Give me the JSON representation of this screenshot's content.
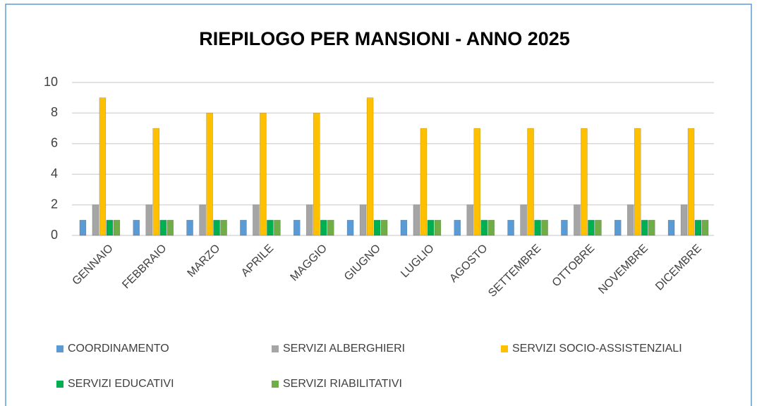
{
  "chart_data": {
    "type": "bar",
    "title": "RIEPILOGO PER MANSIONI - ANNO 2025",
    "categories": [
      "GENNAIO",
      "FEBBRAIO",
      "MARZO",
      "APRILE",
      "MAGGIO",
      "GIUGNO",
      "LUGLIO",
      "AGOSTO",
      "SETTEMBRE",
      "OTTOBRE",
      "NOVEMBRE",
      "DICEMBRE"
    ],
    "series": [
      {
        "name": "COORDINAMENTO",
        "color": "#5b9bd5",
        "values": [
          1,
          1,
          1,
          1,
          1,
          1,
          1,
          1,
          1,
          1,
          1,
          1
        ]
      },
      {
        "name": "SERVIZI ALBERGHIERI",
        "color": "#a5a5a5",
        "values": [
          2,
          2,
          2,
          2,
          2,
          2,
          2,
          2,
          2,
          2,
          2,
          2
        ]
      },
      {
        "name": "SERVIZI SOCIO-ASSISTENZIALI",
        "color": "#ffc000",
        "values": [
          9,
          7,
          8,
          8,
          8,
          9,
          7,
          7,
          7,
          7,
          7,
          7
        ]
      },
      {
        "name": "SERVIZI EDUCATIVI",
        "color": "#00b050",
        "values": [
          1,
          1,
          1,
          1,
          1,
          1,
          1,
          1,
          1,
          1,
          1,
          1
        ]
      },
      {
        "name": "SERVIZI RIABILITATIVI",
        "color": "#70ad47",
        "values": [
          1,
          1,
          1,
          1,
          1,
          1,
          1,
          1,
          1,
          1,
          1,
          1
        ]
      }
    ],
    "ylim": [
      0,
      10
    ],
    "yticks": [
      0,
      2,
      4,
      6,
      8,
      10
    ],
    "grid": true,
    "legend": "bottom"
  }
}
